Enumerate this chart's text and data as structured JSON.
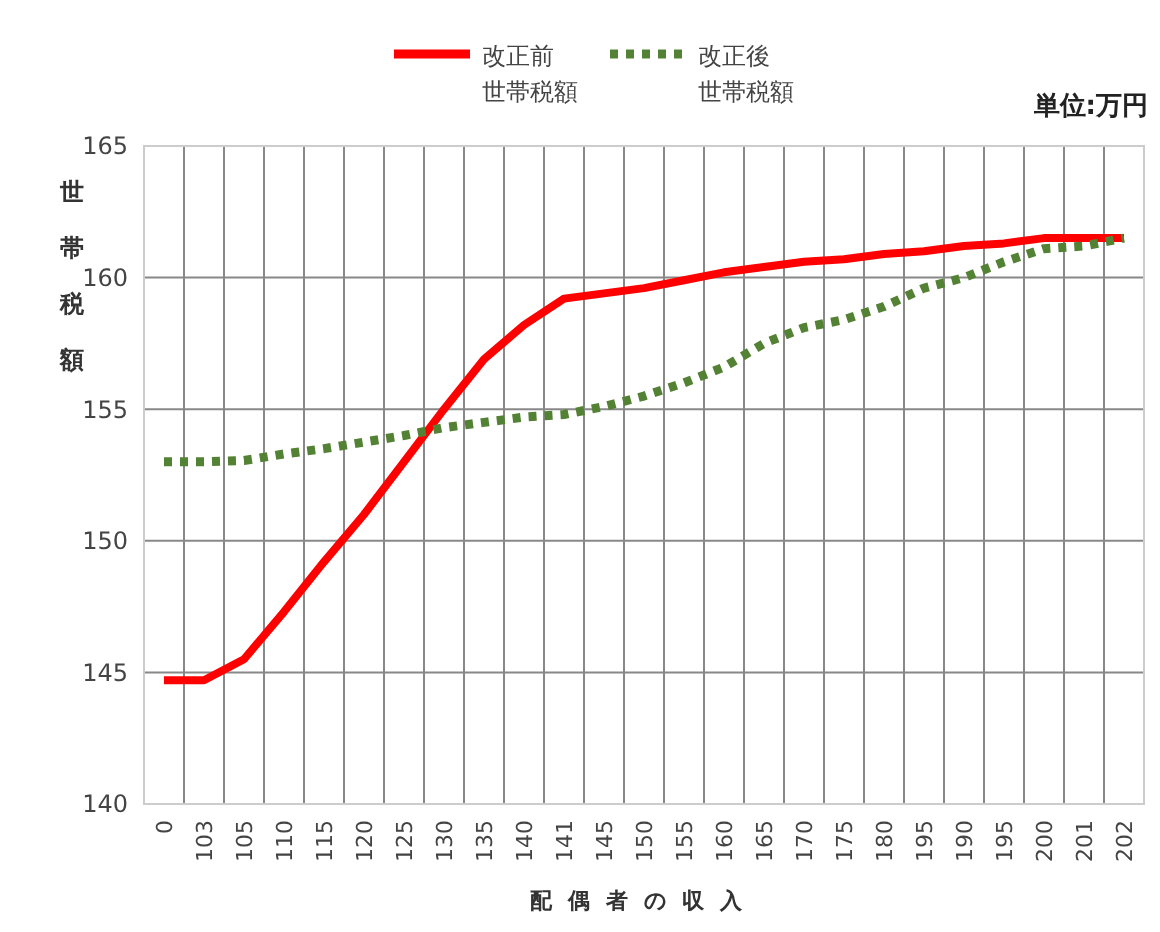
{
  "chart_data": {
    "type": "line",
    "xlabel": "配偶者の収入",
    "ylabel": "世帯税額",
    "annotations": [
      "単位:万円"
    ],
    "categories": [
      "0",
      "103",
      "105",
      "110",
      "115",
      "120",
      "125",
      "130",
      "135",
      "140",
      "141",
      "145",
      "150",
      "155",
      "160",
      "165",
      "170",
      "175",
      "180",
      "195",
      "190",
      "195",
      "200",
      "201",
      "202"
    ],
    "series": [
      {
        "name": "改正前世帯税額",
        "color": "#ff0000",
        "line_style": "solid",
        "values": [
          144.7,
          144.7,
          145.5,
          147.3,
          149.2,
          151.0,
          153.0,
          155.0,
          156.9,
          158.2,
          159.2,
          159.4,
          159.6,
          159.9,
          160.2,
          160.4,
          160.6,
          160.7,
          160.9,
          161.0,
          161.2,
          161.3,
          161.5,
          161.5,
          161.5
        ]
      },
      {
        "name": "改正後世帯税額",
        "color": "#548235",
        "line_style": "dotted",
        "values": [
          153.0,
          153.0,
          153.05,
          153.3,
          153.5,
          153.75,
          154.0,
          154.3,
          154.5,
          154.7,
          154.8,
          155.1,
          155.5,
          156.0,
          156.6,
          157.5,
          158.1,
          158.4,
          158.9,
          159.6,
          160.0,
          160.6,
          161.1,
          161.2,
          161.5
        ]
      }
    ],
    "ylim": [
      140,
      165
    ],
    "yticks": [
      140,
      145,
      150,
      155,
      160,
      165
    ],
    "grid": true,
    "legend": "top",
    "marker": "none"
  }
}
